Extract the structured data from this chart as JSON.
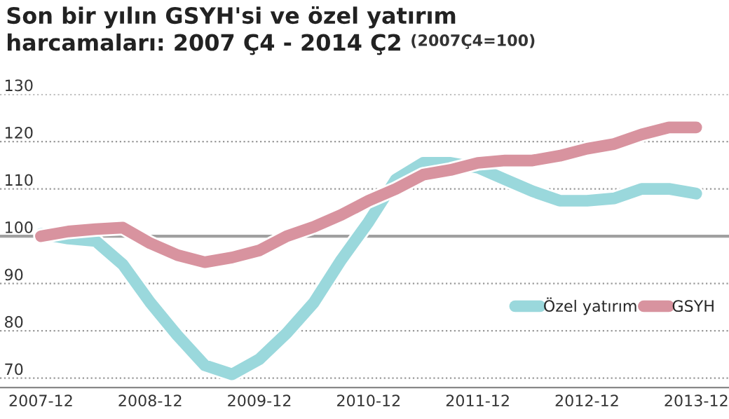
{
  "chart_data": {
    "type": "line",
    "title": "Son bir yılın GSYH'si ve özel yatırım\nharcamaları: 2007 Ç4 - 2014 Ç2",
    "subtitle": "(2007Ç4=100)",
    "categories": [
      "2007-12",
      null,
      null,
      null,
      "2008-12",
      null,
      null,
      null,
      "2009-12",
      null,
      null,
      null,
      "2010-12",
      null,
      null,
      null,
      "2011-12",
      null,
      null,
      null,
      "2012-12",
      null,
      null,
      null,
      "2013-12"
    ],
    "series": [
      {
        "name": "Özel yatırım",
        "color": "#9ad8dc",
        "values": [
          100.5,
          99.5,
          99,
          94,
          86,
          79,
          72.7,
          70.8,
          74,
          79.5,
          86,
          95,
          103,
          112,
          115.5,
          115.5,
          114.5,
          112,
          109.5,
          107.5,
          107.5,
          108,
          110,
          110,
          109
        ]
      },
      {
        "name": "GSYH",
        "color": "#d8939f",
        "values": [
          100,
          101,
          101.5,
          101.8,
          98.5,
          96,
          94.5,
          95.5,
          97,
          100,
          102,
          104.5,
          107.5,
          110,
          113,
          114,
          115.5,
          116,
          116,
          117,
          118.5,
          119.5,
          121.5,
          123,
          123
        ]
      }
    ],
    "ylim": [
      68,
      130
    ],
    "yticks": [
      70,
      80,
      90,
      100,
      110,
      120,
      130
    ],
    "ref_lines": [
      {
        "axis": "y",
        "value": 100,
        "label": null,
        "color": "#a0a0a0",
        "line_style": "solid"
      }
    ],
    "grid": "y",
    "legend": "bottom right",
    "marker": "none",
    "line_style": "solid"
  }
}
